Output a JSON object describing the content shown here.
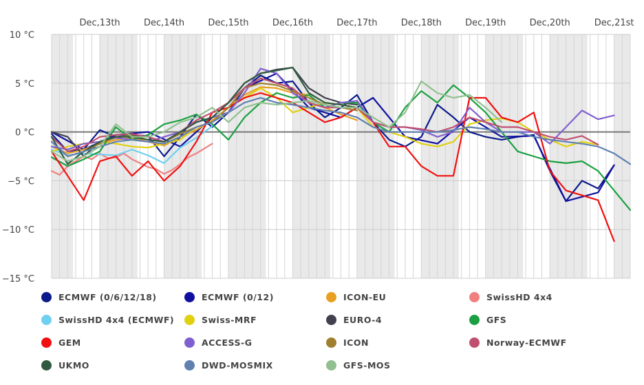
{
  "chart_data": {
    "type": "line",
    "title": "",
    "xlabel": "",
    "ylabel": "",
    "x_unit": "hours from start (6h steps)",
    "x_range": [
      0,
      216
    ],
    "ylim": [
      -15,
      10
    ],
    "y_ticks": [
      {
        "value": 10,
        "label": "10 °C"
      },
      {
        "value": 5,
        "label": "5 °C"
      },
      {
        "value": 0,
        "label": "0 °C"
      },
      {
        "value": -5,
        "label": "−5 °C"
      },
      {
        "value": -10,
        "label": "−10 °C"
      },
      {
        "value": -15,
        "label": "−15 °C"
      }
    ],
    "x_day_labels": [
      {
        "label": "Dec,13th",
        "at": 18
      },
      {
        "label": "Dec,14th",
        "at": 42
      },
      {
        "label": "Dec,15th",
        "at": 66
      },
      {
        "label": "Dec,16th",
        "at": 90
      },
      {
        "label": "Dec,17th",
        "at": 114
      },
      {
        "label": "Dec,18th",
        "at": 138
      },
      {
        "label": "Dec,19th",
        "at": 162
      },
      {
        "label": "Dec,20th",
        "at": 186
      },
      {
        "label": "Dec,21st",
        "at": 210
      }
    ],
    "grid": true,
    "legend_position": "bottom",
    "series": [
      {
        "name": "ECMWF (0/6/12/18)",
        "color": "#0a1a8a",
        "x": [
          0,
          6,
          12,
          18,
          24,
          30,
          36,
          42,
          48,
          54,
          60,
          66,
          72,
          78,
          84,
          90,
          96,
          102,
          108,
          114,
          120,
          126,
          132,
          138,
          144,
          150,
          156,
          162,
          168,
          174,
          180,
          186,
          192,
          198,
          204,
          210
        ],
        "y": [
          -0.2,
          -2.0,
          -1.8,
          0.2,
          -0.5,
          -0.3,
          -0.4,
          -2.5,
          -0.5,
          1.8,
          0.5,
          2.0,
          4.5,
          5.8,
          5.0,
          5.2,
          3.0,
          1.5,
          2.5,
          3.8,
          1.0,
          -0.8,
          -1.5,
          -0.5,
          2.8,
          1.5,
          0.0,
          -0.5,
          -0.8,
          -0.5,
          -0.3,
          -4.0,
          -7.1,
          -5.0,
          -5.8,
          -3.4
        ]
      },
      {
        "name": "ECMWF (0/12)",
        "color": "#1010a0",
        "x": [
          0,
          12,
          24,
          36,
          48,
          60,
          72,
          84,
          96,
          108,
          120,
          132,
          144,
          156,
          168,
          180,
          192,
          204,
          210
        ],
        "y": [
          0.0,
          -1.8,
          -0.3,
          0.0,
          -1.5,
          1.5,
          4.5,
          6.0,
          2.5,
          1.5,
          3.5,
          -0.5,
          -1.2,
          1.5,
          -0.5,
          -0.4,
          -7.1,
          -6.2,
          -3.4
        ]
      },
      {
        "name": "ICON-EU",
        "color": "#e8a020",
        "x": [
          0,
          6,
          12,
          18,
          24,
          30,
          36,
          42,
          48,
          54,
          60,
          66,
          72,
          78,
          84,
          90,
          96,
          102,
          108,
          114
        ],
        "y": [
          -1.5,
          -2.2,
          -1.8,
          -1.2,
          -0.8,
          -0.6,
          -1.0,
          -1.4,
          -0.5,
          0.2,
          1.2,
          2.5,
          3.8,
          4.6,
          4.5,
          4.0,
          3.8,
          2.5,
          1.8,
          1.2
        ]
      },
      {
        "name": "SwissHD 4x4",
        "color": "#f08080",
        "x": [
          0,
          3,
          6,
          9,
          12,
          15,
          18,
          21,
          24,
          27,
          30,
          33,
          36,
          39,
          42,
          45,
          48,
          51,
          54,
          57,
          60
        ],
        "y": [
          -4.0,
          -4.4,
          -3.5,
          -3.0,
          -2.5,
          -2.8,
          -2.2,
          -2.7,
          -2.6,
          -2.2,
          -2.8,
          -3.2,
          -3.6,
          -3.8,
          -4.3,
          -3.9,
          -3.3,
          -2.6,
          -2.2,
          -1.7,
          -1.2
        ]
      },
      {
        "name": "SwissHD 4x4 (ECMWF)",
        "color": "#70d0f0",
        "x": [
          0,
          6,
          12,
          18,
          24,
          30,
          36,
          42,
          48,
          54,
          60
        ],
        "y": [
          -1.8,
          -2.4,
          -2.2,
          -2.3,
          -2.4,
          -1.8,
          -2.4,
          -3.2,
          -1.6,
          -0.6,
          0.6
        ]
      },
      {
        "name": "Swiss-MRF",
        "color": "#e0d010",
        "x": [
          0,
          6,
          12,
          18,
          24,
          30,
          36,
          42,
          48,
          54,
          60,
          66,
          72,
          78,
          84,
          90,
          96,
          102,
          108,
          114,
          120,
          126,
          132,
          138,
          144,
          150,
          156,
          162,
          168,
          174,
          180,
          186,
          192,
          198,
          204
        ],
        "y": [
          -2.0,
          -1.5,
          -1.2,
          -1.0,
          -1.2,
          -1.5,
          -1.6,
          -1.2,
          -0.8,
          0.5,
          1.0,
          2.5,
          3.5,
          4.5,
          3.5,
          2.0,
          2.5,
          3.0,
          2.8,
          2.5,
          0.5,
          0.0,
          -0.5,
          -1.2,
          -1.5,
          -1.0,
          0.8,
          1.2,
          1.4,
          1.0,
          0.0,
          -0.8,
          -1.5,
          -1.0,
          -1.3
        ]
      },
      {
        "name": "EURO-4",
        "color": "#404050",
        "x": [
          0,
          6,
          12,
          18,
          24,
          30,
          36,
          42,
          48,
          54,
          60,
          66,
          72,
          78,
          84,
          90,
          96,
          102,
          108,
          114
        ],
        "y": [
          0.0,
          -0.5,
          -2.5,
          -1.0,
          -0.6,
          -0.3,
          -0.5,
          -1.0,
          0.0,
          1.0,
          1.5,
          3.0,
          5.0,
          6.0,
          6.4,
          6.6,
          4.5,
          3.5,
          3.0,
          2.8
        ]
      },
      {
        "name": "GFS",
        "color": "#1aa040",
        "x": [
          0,
          6,
          12,
          18,
          24,
          30,
          36,
          42,
          48,
          54,
          60,
          66,
          72,
          78,
          84,
          90,
          96,
          102,
          108,
          114,
          120,
          126,
          132,
          138,
          144,
          150,
          156,
          162,
          168,
          174,
          180,
          186,
          192,
          198,
          204,
          210,
          216
        ],
        "y": [
          -2.6,
          -3.5,
          -2.8,
          -2.0,
          0.5,
          -0.8,
          -0.3,
          0.8,
          1.2,
          1.8,
          0.8,
          -0.8,
          1.5,
          3.0,
          4.0,
          3.5,
          3.8,
          2.5,
          3.0,
          3.0,
          1.0,
          0.0,
          2.5,
          4.2,
          3.0,
          4.8,
          3.5,
          2.0,
          0.0,
          -2.0,
          -2.5,
          -3.0,
          -3.2,
          -3.0,
          -4.0,
          -6.0,
          -8.0
        ]
      },
      {
        "name": "GEM",
        "color": "#f01010",
        "x": [
          0,
          6,
          12,
          18,
          24,
          30,
          36,
          42,
          48,
          54,
          60,
          66,
          72,
          78,
          84,
          90,
          96,
          102,
          108,
          114,
          120,
          126,
          132,
          138,
          144,
          150,
          156,
          162,
          168,
          174,
          180,
          186,
          192,
          198,
          204,
          210
        ],
        "y": [
          -2.0,
          -4.5,
          -7.0,
          -3.0,
          -2.5,
          -4.5,
          -3.0,
          -5.0,
          -3.5,
          -1.0,
          2.0,
          2.5,
          3.5,
          4.0,
          3.5,
          3.0,
          2.0,
          1.0,
          1.5,
          2.5,
          1.0,
          -1.5,
          -1.5,
          -3.5,
          -4.5,
          -4.5,
          3.5,
          3.5,
          1.5,
          1.0,
          2.0,
          -4.0,
          -6.0,
          -6.5,
          -7.0,
          -11.2
        ]
      },
      {
        "name": "ACCESS-G",
        "color": "#8060d0",
        "x": [
          0,
          6,
          12,
          18,
          24,
          30,
          36,
          42,
          48,
          54,
          60,
          66,
          72,
          78,
          84,
          90,
          96,
          102,
          108,
          114,
          120,
          126,
          132,
          138,
          144,
          150,
          156,
          162,
          168,
          174,
          180,
          186,
          192,
          198,
          204,
          210
        ],
        "y": [
          -1.5,
          -1.8,
          -1.2,
          -1.0,
          -0.6,
          -0.8,
          -1.0,
          -0.5,
          0.0,
          1.0,
          1.5,
          2.0,
          4.0,
          6.5,
          6.0,
          4.0,
          3.0,
          2.5,
          3.0,
          3.2,
          1.0,
          0.5,
          0.5,
          0.2,
          -0.5,
          0.0,
          2.5,
          1.0,
          0.0,
          0.0,
          0.0,
          -1.2,
          0.5,
          2.2,
          1.3,
          1.7
        ]
      },
      {
        "name": "ICON",
        "color": "#a08030",
        "x": [
          0,
          6,
          12,
          18,
          24,
          30,
          36,
          42,
          48,
          54,
          60,
          66,
          72,
          78,
          84,
          90,
          96,
          102,
          108,
          114
        ],
        "y": [
          -1.0,
          -2.5,
          -2.0,
          -1.2,
          -0.5,
          -0.4,
          -0.8,
          -1.0,
          -0.2,
          0.5,
          1.0,
          2.5,
          4.5,
          5.0,
          4.8,
          4.2,
          3.5,
          2.8,
          2.5,
          2.2
        ]
      },
      {
        "name": "Norway-ECMWF",
        "color": "#c05070",
        "x": [
          0,
          6,
          12,
          18,
          24,
          30,
          36,
          42,
          48,
          54,
          60,
          66,
          72,
          78,
          84,
          90,
          96,
          102,
          108,
          114,
          120,
          126,
          132,
          138,
          144,
          150,
          156,
          162,
          168,
          174,
          180,
          186,
          192,
          198,
          204
        ],
        "y": [
          -0.5,
          -2.0,
          -1.5,
          -0.5,
          -0.3,
          -0.2,
          -0.5,
          -1.0,
          0.0,
          1.2,
          2.0,
          3.0,
          4.5,
          5.5,
          5.0,
          4.5,
          3.0,
          2.5,
          2.5,
          2.5,
          1.0,
          0.5,
          0.5,
          0.3,
          0.0,
          0.5,
          1.5,
          1.0,
          0.5,
          0.5,
          0.0,
          -0.5,
          -0.8,
          -0.4,
          -1.3
        ]
      },
      {
        "name": "UKMO",
        "color": "#305a40",
        "x": [
          0,
          6,
          12,
          18,
          24,
          30,
          36,
          42,
          48,
          54,
          60,
          66,
          72,
          78,
          84,
          90,
          96,
          102,
          108,
          114
        ],
        "y": [
          -0.5,
          -3.3,
          -2.0,
          -1.0,
          -0.5,
          -0.5,
          -0.8,
          -1.0,
          0.0,
          1.0,
          1.5,
          3.0,
          5.0,
          6.0,
          6.3,
          6.6,
          4.0,
          3.0,
          2.8,
          2.5
        ]
      },
      {
        "name": "DWD-MOSMIX",
        "color": "#6080b0",
        "x": [
          0,
          6,
          12,
          18,
          24,
          30,
          36,
          42,
          48,
          54,
          60,
          66,
          72,
          78,
          84,
          90,
          96,
          102,
          108,
          114,
          120,
          126,
          132,
          138,
          144,
          150,
          156,
          162,
          168,
          174,
          180,
          186,
          192,
          198,
          204,
          210,
          216
        ],
        "y": [
          -1.0,
          -2.5,
          -2.0,
          -1.5,
          -1.0,
          -0.8,
          -1.0,
          -1.2,
          -0.5,
          0.5,
          1.0,
          2.0,
          3.0,
          3.5,
          3.0,
          2.8,
          2.5,
          2.2,
          2.0,
          1.5,
          0.5,
          0.0,
          0.0,
          0.0,
          0.0,
          0.2,
          0.5,
          0.3,
          0.0,
          0.0,
          -0.5,
          -0.8,
          -1.0,
          -1.2,
          -1.5,
          -2.2,
          -3.3
        ]
      },
      {
        "name": "GFS-MOS",
        "color": "#90c090",
        "x": [
          0,
          6,
          12,
          18,
          24,
          30,
          36,
          42,
          48,
          54,
          60,
          66,
          72,
          78,
          84,
          90,
          96,
          102,
          108,
          114,
          120,
          126,
          132,
          138,
          144,
          150,
          156,
          162,
          168
        ],
        "y": [
          -2.0,
          -3.0,
          -2.5,
          -1.5,
          0.8,
          -0.5,
          -0.5,
          0.0,
          1.0,
          1.5,
          2.5,
          1.0,
          2.5,
          3.0,
          2.8,
          3.0,
          3.2,
          2.8,
          2.5,
          2.5,
          1.5,
          0.5,
          2.0,
          5.2,
          4.0,
          3.5,
          3.8,
          2.5,
          1.0
        ]
      }
    ]
  }
}
